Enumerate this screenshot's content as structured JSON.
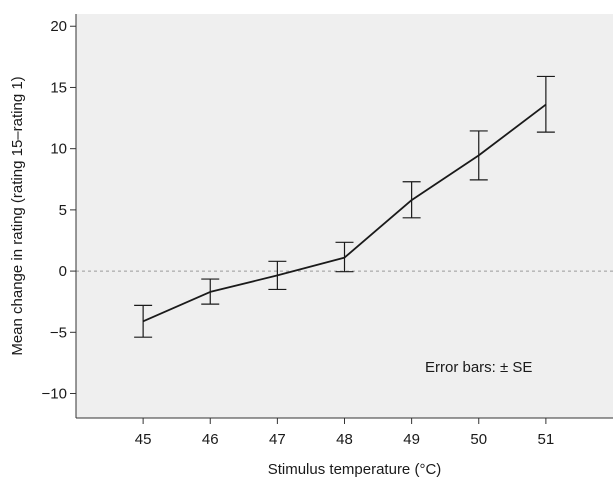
{
  "chart_data": {
    "type": "line",
    "title": "",
    "xlabel": "Stimulus temperature (°C)",
    "ylabel": "Mean change in rating (rating 15–rating 1)",
    "x": [
      45,
      46,
      47,
      48,
      49,
      50,
      51
    ],
    "xlim": [
      44,
      52
    ],
    "ylim": [
      -12,
      21
    ],
    "x_ticks": [
      45,
      46,
      47,
      48,
      49,
      50,
      51
    ],
    "y_ticks": [
      -10,
      -5,
      0,
      5,
      10,
      15,
      20
    ],
    "x_tick_labels": [
      "45",
      "46",
      "47",
      "48",
      "49",
      "50",
      "51"
    ],
    "y_tick_labels": [
      "−10",
      "−5",
      "0",
      "5",
      "10",
      "15",
      "20"
    ],
    "series": [
      {
        "values": [
          -4.1,
          -1.7,
          -0.35,
          1.1,
          5.8,
          9.45,
          13.6
        ],
        "error_lower": [
          -5.4,
          -2.7,
          -1.5,
          -0.05,
          4.35,
          7.45,
          11.35
        ],
        "error_upper": [
          -2.8,
          -0.65,
          0.8,
          2.35,
          7.3,
          11.45,
          15.9
        ]
      }
    ],
    "reference_line_y": 0,
    "annotation": "Error bars: ± SE",
    "grid": false,
    "legend": "none",
    "colors": {
      "plot_background": "#efefef",
      "line": "#1a1a1a",
      "reference_line": "#9a9a9a",
      "axis": "#333333"
    }
  }
}
